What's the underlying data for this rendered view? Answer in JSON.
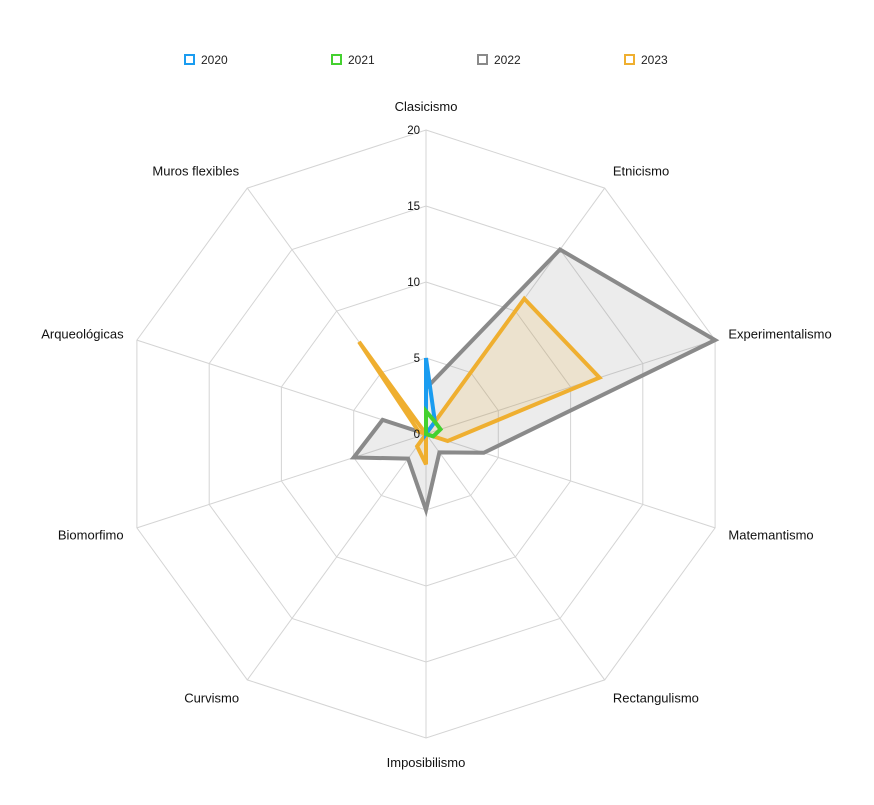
{
  "chart_data": {
    "type": "radar",
    "axes": [
      "Clasicismo",
      "Etnicismo",
      "Experimentalismo",
      "Matemantismo",
      "Rectangulismo",
      "Imposibilismo",
      "Curvismo",
      "Biomorfimo",
      "Arqueológicas",
      "Muros flexibles"
    ],
    "r_ticks": [
      "0",
      "5",
      "10",
      "15",
      "20"
    ],
    "r_range": [
      0,
      20
    ],
    "grid": true,
    "legend_position": "top",
    "series": [
      {
        "name": "2020",
        "color": "#1a9cf0",
        "fill": false,
        "values": [
          5,
          1,
          0,
          0,
          0,
          0,
          0,
          0,
          0,
          0
        ]
      },
      {
        "name": "2021",
        "color": "#44d12f",
        "fill": false,
        "values": [
          1.5,
          1,
          1,
          0.5,
          0,
          0,
          0,
          0,
          0,
          0
        ]
      },
      {
        "name": "2022",
        "color": "#8a8a8a",
        "fill": true,
        "values": [
          3,
          15,
          20,
          4,
          1.5,
          5,
          2,
          5,
          3,
          0
        ]
      },
      {
        "name": "2023",
        "color": "#efaf30",
        "fill": true,
        "values": [
          0,
          11,
          12,
          1.5,
          0,
          2,
          1,
          0,
          0.5,
          7.5
        ]
      }
    ]
  }
}
